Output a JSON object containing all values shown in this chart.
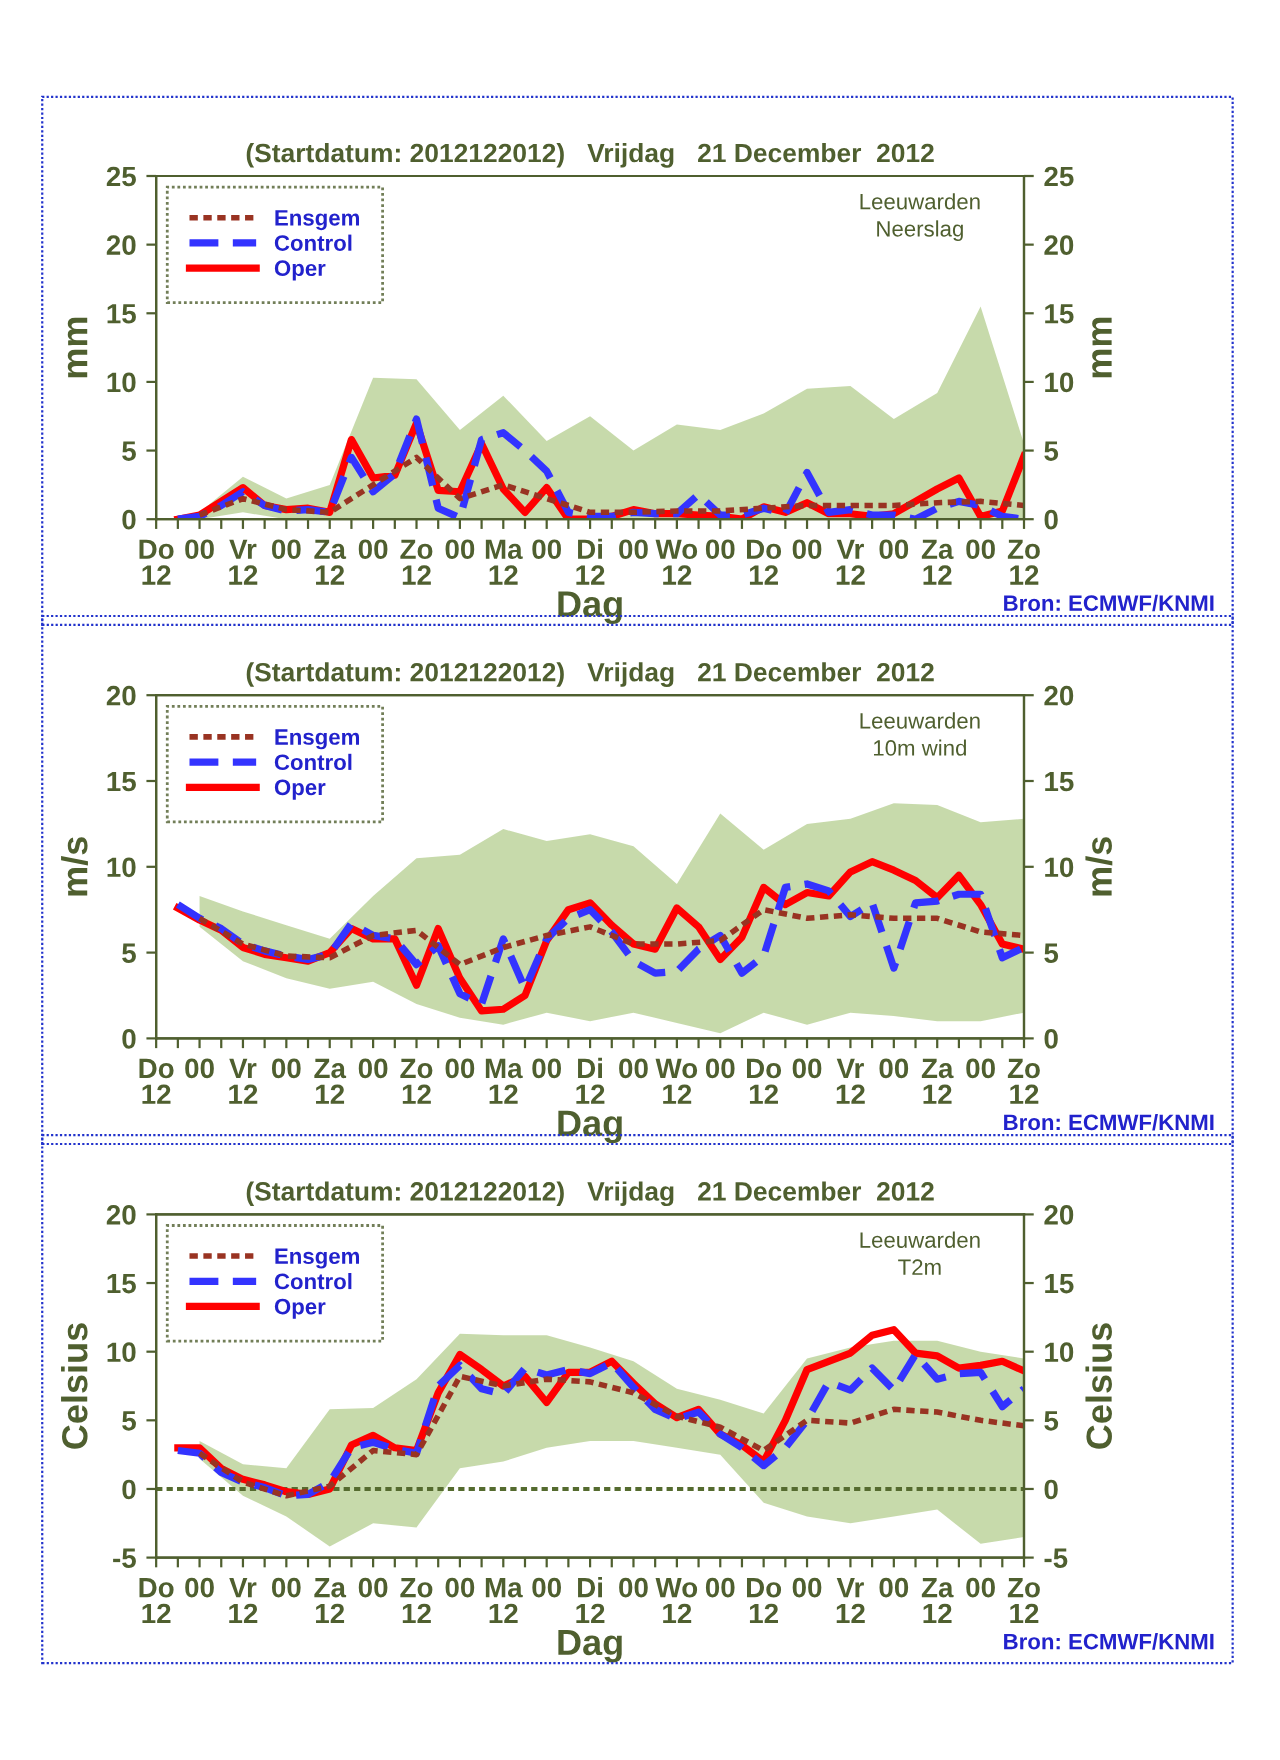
{
  "chart_data": [
    {
      "type": "line",
      "title": "(Startdatum: 2012122012)   Vrijdag   21 December  2012",
      "xlabel": "Dag",
      "ylabel": "mm",
      "y2label": "mm",
      "annotations": [
        "Leeuwarden\nNeerslag",
        "Bron: ECMWF/KNMI"
      ],
      "ylim": [
        0,
        25
      ],
      "yticks": [
        0,
        5,
        10,
        15,
        20,
        25
      ],
      "y2lim": [
        0,
        25
      ],
      "y2ticks": [
        0,
        5,
        10,
        15,
        20,
        25
      ],
      "categories": [
        "Do\n12",
        null,
        "00",
        null,
        "Vr\n12",
        null,
        "00",
        null,
        "Za\n12",
        null,
        "00",
        null,
        "Zo\n12",
        null,
        "00",
        null,
        "Ma\n12",
        null,
        "00",
        null,
        "Di\n12",
        null,
        "00",
        null,
        "Wo\n12",
        null,
        "00",
        null,
        "Do\n12",
        null,
        "00",
        null,
        "Vr\n12",
        null,
        "00",
        null,
        "Za\n12",
        null,
        "00",
        null,
        "Zo\n12"
      ],
      "legend": "top left",
      "grid": false,
      "series": [
        {
          "name": "Ensgem",
          "color": "#993322",
          "line_style": "dotted",
          "values": [
            null,
            null,
            0.3,
            null,
            1.5,
            null,
            0.7,
            null,
            0.5,
            null,
            2.5,
            null,
            4.5,
            null,
            1.5,
            null,
            2.5,
            null,
            1.5,
            null,
            0.5,
            null,
            0.5,
            null,
            0.6,
            null,
            0.6,
            null,
            0.8,
            null,
            1.0,
            null,
            1.0,
            null,
            1.0,
            null,
            1.2,
            null,
            1.3,
            null,
            1.0
          ],
          "lower": [
            null,
            null,
            0,
            null,
            0.5,
            null,
            0,
            null,
            0,
            null,
            0,
            null,
            0,
            null,
            0,
            null,
            0,
            null,
            0,
            null,
            0,
            null,
            0,
            null,
            0,
            null,
            0,
            null,
            0,
            null,
            0,
            null,
            0,
            null,
            0,
            null,
            0,
            null,
            0,
            null,
            0
          ],
          "upper": [
            null,
            null,
            0.5,
            null,
            3.1,
            null,
            1.5,
            null,
            2.5,
            null,
            10.3,
            null,
            10.2,
            null,
            6.5,
            null,
            9.0,
            null,
            5.7,
            null,
            7.5,
            null,
            5.0,
            null,
            6.9,
            null,
            6.5,
            null,
            7.7,
            null,
            9.5,
            null,
            9.7,
            null,
            7.3,
            null,
            9.2,
            null,
            15.5,
            null,
            5.5
          ]
        },
        {
          "name": "Control",
          "color": "#3333ff",
          "line_style": "dashed",
          "values": [
            null,
            0,
            0.2,
            1.0,
            2.0,
            1.0,
            0.6,
            0.7,
            0.5,
            4.5,
            2.0,
            3.3,
            7.3,
            0.8,
            0.1,
            5.8,
            6.3,
            5.0,
            3.5,
            0.5,
            0.2,
            0.2,
            0.5,
            0.4,
            0.4,
            1.8,
            0.3,
            0.3,
            0.8,
            0.4,
            3.4,
            0.5,
            0.7,
            0.3,
            0.3,
            0,
            0.8,
            1.3,
            1.0,
            0.2,
            0
          ]
        },
        {
          "name": "Oper",
          "color": "#ff0000",
          "line_style": "solid",
          "values": [
            null,
            0,
            0.3,
            1.3,
            2.3,
            1.0,
            0.7,
            0.8,
            0.5,
            5.8,
            3.0,
            3.2,
            7.0,
            2.1,
            2.0,
            5.5,
            2.2,
            0.5,
            2.3,
            0,
            0,
            0.2,
            0.7,
            0.4,
            0.4,
            0.3,
            0.2,
            0,
            0.9,
            0.5,
            1.2,
            0.4,
            0.4,
            0.2,
            0.4,
            1.3,
            2.2,
            3.0,
            0.2,
            0.6,
            4.6
          ]
        }
      ]
    },
    {
      "type": "line",
      "title": "(Startdatum: 2012122012)   Vrijdag   21 December  2012",
      "xlabel": "Dag",
      "ylabel": "m/s",
      "y2label": "m/s",
      "annotations": [
        "Leeuwarden\n10m wind",
        "Bron: ECMWF/KNMI"
      ],
      "ylim": [
        0,
        20
      ],
      "yticks": [
        0,
        5,
        10,
        15,
        20
      ],
      "y2lim": [
        0,
        20
      ],
      "y2ticks": [
        0,
        5,
        10,
        15,
        20
      ],
      "categories": [
        "Do\n12",
        null,
        "00",
        null,
        "Vr\n12",
        null,
        "00",
        null,
        "Za\n12",
        null,
        "00",
        null,
        "Zo\n12",
        null,
        "00",
        null,
        "Ma\n12",
        null,
        "00",
        null,
        "Di\n12",
        null,
        "00",
        null,
        "Wo\n12",
        null,
        "00",
        null,
        "Do\n12",
        null,
        "00",
        null,
        "Vr\n12",
        null,
        "00",
        null,
        "Za\n12",
        null,
        "00",
        null,
        "Zo\n12"
      ],
      "legend": "top left",
      "grid": false,
      "series": [
        {
          "name": "Ensgem",
          "color": "#993322",
          "line_style": "dotted",
          "values": [
            null,
            null,
            7.0,
            null,
            5.5,
            null,
            4.8,
            null,
            4.7,
            null,
            6.0,
            null,
            6.3,
            null,
            4.3,
            null,
            5.3,
            null,
            6.0,
            null,
            6.5,
            null,
            5.5,
            null,
            5.5,
            null,
            5.7,
            null,
            7.5,
            null,
            7.0,
            null,
            7.2,
            null,
            7.0,
            null,
            7.0,
            null,
            6.2,
            null,
            6.0
          ],
          "lower": [
            null,
            null,
            6.5,
            null,
            4.5,
            null,
            3.5,
            null,
            2.9,
            null,
            3.3,
            null,
            2.0,
            null,
            1.2,
            null,
            0.8,
            null,
            1.5,
            null,
            1.0,
            null,
            1.5,
            null,
            0.9,
            null,
            0.3,
            null,
            1.5,
            null,
            0.8,
            null,
            1.5,
            null,
            1.3,
            null,
            1.0,
            null,
            1.0,
            null,
            1.5
          ],
          "upper": [
            null,
            null,
            8.3,
            null,
            7.4,
            null,
            6.6,
            null,
            5.8,
            null,
            8.3,
            null,
            10.5,
            null,
            10.7,
            null,
            12.2,
            null,
            11.5,
            null,
            11.9,
            null,
            11.2,
            null,
            9.0,
            null,
            13.1,
            null,
            11.0,
            null,
            12.5,
            null,
            12.8,
            null,
            13.7,
            null,
            13.6,
            null,
            12.6,
            null,
            12.8
          ]
        },
        {
          "name": "Control",
          "color": "#3333ff",
          "line_style": "dashed",
          "values": [
            null,
            7.8,
            7.0,
            6.4,
            5.5,
            5.1,
            4.8,
            4.6,
            4.9,
            6.7,
            6.0,
            5.8,
            4.3,
            5.4,
            2.6,
            2.0,
            5.8,
            2.9,
            5.8,
            7.0,
            7.5,
            6.2,
            4.5,
            3.8,
            3.9,
            5.2,
            6.0,
            3.8,
            4.8,
            8.8,
            9.0,
            8.6,
            7.1,
            7.9,
            4.1,
            7.9,
            8.0,
            8.4,
            8.4,
            4.7,
            5.3
          ]
        },
        {
          "name": "Oper",
          "color": "#ff0000",
          "line_style": "solid",
          "values": [
            null,
            7.6,
            6.9,
            6.3,
            5.3,
            4.9,
            4.7,
            4.5,
            5.0,
            6.4,
            5.8,
            5.8,
            3.1,
            6.4,
            3.5,
            1.6,
            1.7,
            2.5,
            5.7,
            7.5,
            7.9,
            6.6,
            5.5,
            5.2,
            7.6,
            6.5,
            4.6,
            5.9,
            8.8,
            7.8,
            8.5,
            8.3,
            9.7,
            10.3,
            9.8,
            9.2,
            8.2,
            9.5,
            7.8,
            5.5,
            5.2
          ]
        }
      ]
    },
    {
      "type": "line",
      "title": "(Startdatum: 2012122012)   Vrijdag   21 December  2012",
      "xlabel": "Dag",
      "ylabel": "Celsius",
      "y2label": "Celsius",
      "annotations": [
        "Leeuwarden\nT2m",
        "Bron: ECMWF/KNMI"
      ],
      "ylim": [
        -5,
        20
      ],
      "yticks": [
        -5,
        0,
        5,
        10,
        15,
        20
      ],
      "y2lim": [
        -5,
        20
      ],
      "y2ticks": [
        -5,
        0,
        5,
        10,
        15,
        20
      ],
      "categories": [
        "Do\n12",
        null,
        "00",
        null,
        "Vr\n12",
        null,
        "00",
        null,
        "Za\n12",
        null,
        "00",
        null,
        "Zo\n12",
        null,
        "00",
        null,
        "Ma\n12",
        null,
        "00",
        null,
        "Di\n12",
        null,
        "00",
        null,
        "Wo\n12",
        null,
        "00",
        null,
        "Do\n12",
        null,
        "00",
        null,
        "Vr\n12",
        null,
        "00",
        null,
        "Za\n12",
        null,
        "00",
        null,
        "Zo\n12"
      ],
      "legend": "top left",
      "grid": false,
      "ref_lines": [
        {
          "axis": "y",
          "value": 0,
          "color": "#556b2f",
          "line_style": "dotted"
        }
      ],
      "series": [
        {
          "name": "Ensgem",
          "color": "#993322",
          "line_style": "dotted",
          "values": [
            null,
            null,
            2.6,
            null,
            0.5,
            null,
            -0.5,
            null,
            0.2,
            null,
            2.8,
            null,
            2.5,
            null,
            8.2,
            null,
            7.5,
            null,
            8.0,
            null,
            7.8,
            null,
            7.0,
            null,
            5.3,
            null,
            4.5,
            null,
            2.8,
            null,
            5.0,
            null,
            4.8,
            null,
            5.8,
            null,
            5.6,
            null,
            5.0,
            null,
            4.6
          ],
          "lower": [
            null,
            null,
            2.2,
            null,
            -0.5,
            null,
            -2.0,
            null,
            -4.2,
            null,
            -2.5,
            null,
            -2.8,
            null,
            1.5,
            null,
            2.0,
            null,
            3.0,
            null,
            3.5,
            null,
            3.5,
            null,
            3.0,
            null,
            2.5,
            null,
            -1.0,
            null,
            -2.0,
            null,
            -2.5,
            null,
            -2.0,
            null,
            -1.5,
            null,
            -4.0,
            null,
            -3.5
          ],
          "upper": [
            null,
            null,
            3.5,
            null,
            1.8,
            null,
            1.5,
            null,
            5.8,
            null,
            5.9,
            null,
            8.0,
            null,
            11.3,
            null,
            11.2,
            null,
            11.2,
            null,
            10.3,
            null,
            9.3,
            null,
            7.3,
            null,
            6.5,
            null,
            5.5,
            null,
            9.5,
            null,
            10.3,
            null,
            10.8,
            null,
            10.8,
            null,
            10.0,
            null,
            9.5
          ]
        },
        {
          "name": "Control",
          "color": "#3333ff",
          "line_style": "dashed",
          "values": [
            null,
            2.8,
            2.6,
            1.2,
            0.5,
            0.1,
            -0.5,
            -0.4,
            0.5,
            3.0,
            3.4,
            2.9,
            2.6,
            7.5,
            9.0,
            7.3,
            6.9,
            8.8,
            8.3,
            8.7,
            8.4,
            9.2,
            7.4,
            5.8,
            5.1,
            5.6,
            4.0,
            3.0,
            1.7,
            3.0,
            5.0,
            7.8,
            7.2,
            8.8,
            7.2,
            9.8,
            8.0,
            8.4,
            8.5,
            6.0,
            7.3
          ]
        },
        {
          "name": "Oper",
          "color": "#ff0000",
          "line_style": "solid",
          "values": [
            null,
            3.0,
            3.0,
            1.5,
            0.7,
            0.3,
            -0.2,
            -0.4,
            0,
            3.2,
            3.9,
            3.0,
            2.8,
            7.0,
            9.8,
            8.7,
            7.5,
            8.2,
            6.3,
            8.5,
            8.5,
            9.3,
            7.7,
            6.2,
            5.2,
            5.8,
            4.0,
            3.2,
            2.0,
            5.0,
            8.7,
            9.3,
            9.9,
            11.2,
            11.6,
            9.9,
            9.7,
            8.8,
            9.0,
            9.3,
            8.6
          ]
        }
      ]
    }
  ]
}
